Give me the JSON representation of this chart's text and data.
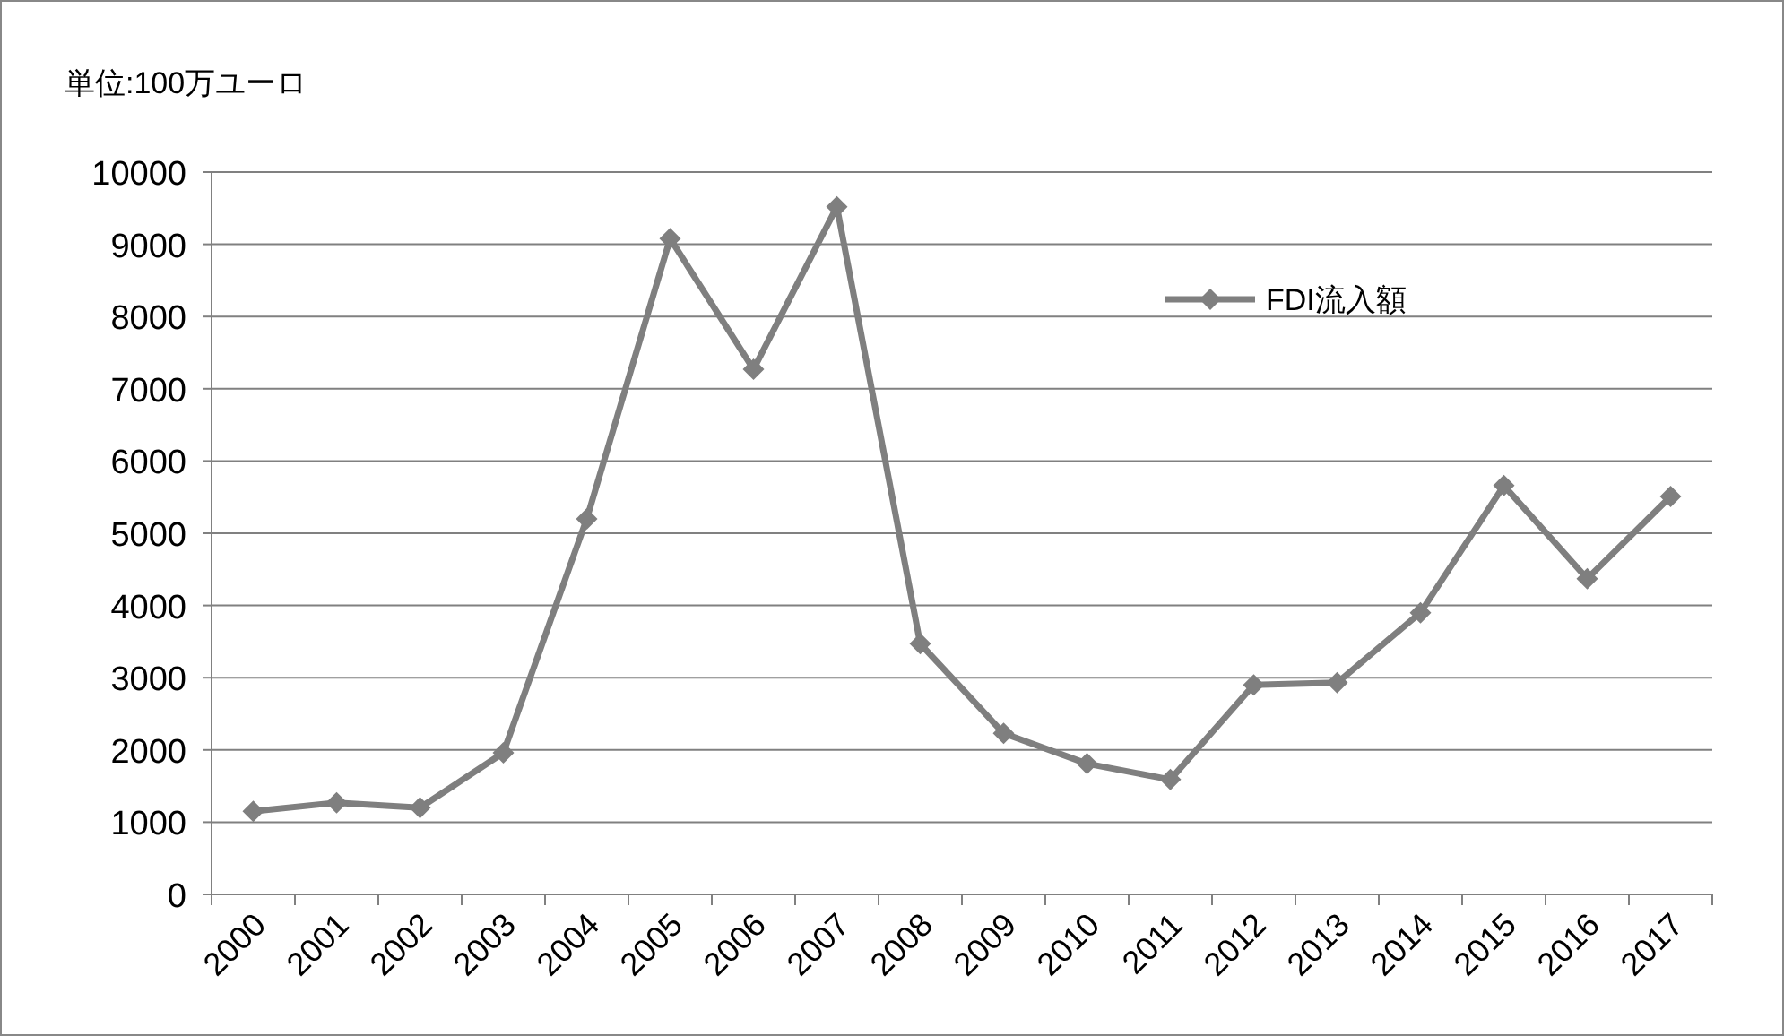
{
  "chart_data": {
    "type": "line",
    "ylabel": "単位:100万ユーロ",
    "categories": [
      "2000",
      "2001",
      "2002",
      "2003",
      "2004",
      "2005",
      "2006",
      "2007",
      "2008",
      "2009",
      "2010",
      "2011",
      "2012",
      "2013",
      "2014",
      "2015",
      "2016",
      "2017"
    ],
    "series": [
      {
        "name": "FDI流入額",
        "color": "#7f7f7f",
        "values": [
          1150,
          1270,
          1200,
          1960,
          5200,
          9080,
          7270,
          9520,
          3470,
          2230,
          1810,
          1590,
          2900,
          2930,
          3900,
          5660,
          4370,
          5510
        ]
      }
    ],
    "ylim": [
      0,
      10000
    ],
    "yticks": [
      0,
      1000,
      2000,
      3000,
      4000,
      5000,
      6000,
      7000,
      8000,
      9000,
      10000
    ],
    "grid": "y",
    "legend": "top right",
    "marker": "diamond",
    "line_style": "solid"
  }
}
